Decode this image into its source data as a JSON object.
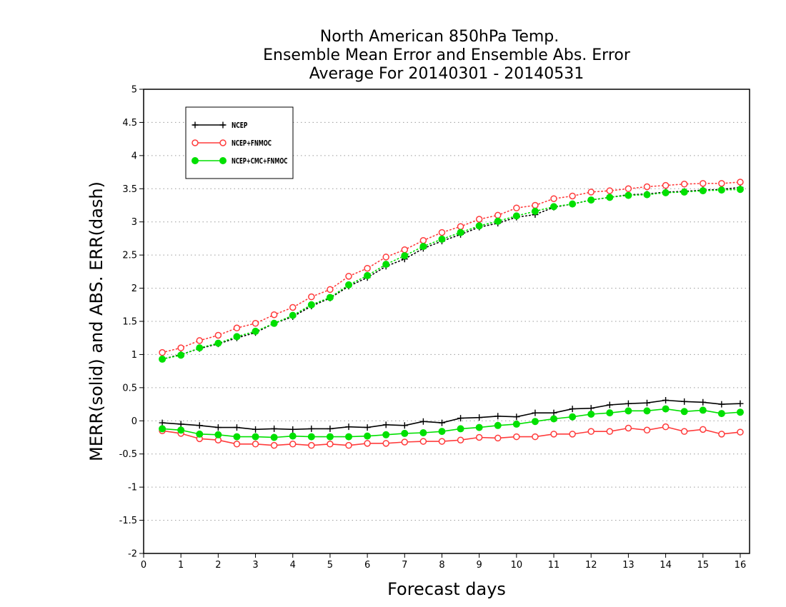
{
  "chart_data": {
    "type": "line",
    "title_lines": [
      "North American 850hPa Temp.",
      "Ensemble Mean Error and Ensemble Abs. Error",
      "Average For 20140301 - 20140531"
    ],
    "xlabel": "Forecast days",
    "ylabel": "MERR(solid) and ABS. ERR(dash)",
    "xlim": [
      0,
      16.25
    ],
    "ylim": [
      -2,
      5
    ],
    "x_ticks": [
      "0",
      "1",
      "2",
      "3",
      "4",
      "5",
      "6",
      "7",
      "8",
      "9",
      "10",
      "11",
      "12",
      "13",
      "14",
      "15",
      "16"
    ],
    "y_ticks": [
      "5",
      "4.5",
      "4",
      "3.5",
      "3",
      "2.5",
      "2",
      "1.5",
      "1",
      "0.5",
      "0",
      "-0.5",
      "-1",
      "-1.5",
      "-2"
    ],
    "grid": "horizontal-dotted",
    "legend_position": "top-left",
    "x": [
      0.5,
      1,
      1.5,
      2,
      2.5,
      3,
      3.5,
      4,
      4.5,
      5,
      5.5,
      6,
      6.5,
      7,
      7.5,
      8,
      8.5,
      9,
      9.5,
      10,
      10.5,
      11,
      11.5,
      12,
      12.5,
      13,
      13.5,
      14,
      14.5,
      15,
      15.5,
      16
    ],
    "series": [
      {
        "name": "NCEP",
        "color": "#000000",
        "marker": "plus",
        "merr": [
          -0.03,
          -0.05,
          -0.07,
          -0.1,
          -0.1,
          -0.13,
          -0.12,
          -0.13,
          -0.12,
          -0.12,
          -0.09,
          -0.1,
          -0.06,
          -0.07,
          -0.01,
          -0.03,
          0.04,
          0.05,
          0.07,
          0.06,
          0.12,
          0.12,
          0.18,
          0.19,
          0.24,
          0.26,
          0.27,
          0.31,
          0.29,
          0.28,
          0.25,
          0.26
        ],
        "abs_err": [
          0.93,
          1.0,
          1.09,
          1.16,
          1.25,
          1.33,
          1.47,
          1.57,
          1.73,
          1.85,
          2.03,
          2.16,
          2.33,
          2.44,
          2.6,
          2.71,
          2.81,
          2.92,
          2.98,
          3.07,
          3.11,
          3.22,
          3.27,
          3.33,
          3.37,
          3.41,
          3.42,
          3.45,
          3.46,
          3.48,
          3.49,
          3.52
        ]
      },
      {
        "name": "NCEP+FNMOC",
        "color": "#ff3b3b",
        "marker": "open-circle",
        "merr": [
          -0.15,
          -0.19,
          -0.27,
          -0.29,
          -0.35,
          -0.35,
          -0.37,
          -0.35,
          -0.37,
          -0.35,
          -0.37,
          -0.34,
          -0.34,
          -0.32,
          -0.31,
          -0.31,
          -0.29,
          -0.25,
          -0.26,
          -0.24,
          -0.24,
          -0.2,
          -0.2,
          -0.16,
          -0.16,
          -0.11,
          -0.14,
          -0.09,
          -0.16,
          -0.13,
          -0.2,
          -0.17
        ],
        "abs_err": [
          1.03,
          1.1,
          1.21,
          1.29,
          1.4,
          1.47,
          1.6,
          1.71,
          1.87,
          1.98,
          2.18,
          2.3,
          2.47,
          2.58,
          2.72,
          2.84,
          2.93,
          3.04,
          3.1,
          3.21,
          3.25,
          3.35,
          3.39,
          3.45,
          3.47,
          3.5,
          3.53,
          3.55,
          3.57,
          3.58,
          3.58,
          3.6
        ]
      },
      {
        "name": "NCEP+CMC+FNMOC",
        "color": "#00e000",
        "marker": "filled-circle",
        "merr": [
          -0.12,
          -0.14,
          -0.2,
          -0.21,
          -0.24,
          -0.24,
          -0.25,
          -0.23,
          -0.24,
          -0.24,
          -0.24,
          -0.23,
          -0.21,
          -0.19,
          -0.18,
          -0.16,
          -0.12,
          -0.1,
          -0.07,
          -0.05,
          -0.01,
          0.03,
          0.06,
          0.1,
          0.12,
          0.15,
          0.15,
          0.18,
          0.14,
          0.16,
          0.11,
          0.13
        ],
        "abs_err": [
          0.93,
          0.99,
          1.1,
          1.17,
          1.27,
          1.35,
          1.47,
          1.59,
          1.75,
          1.86,
          2.05,
          2.19,
          2.36,
          2.49,
          2.63,
          2.74,
          2.84,
          2.94,
          3.01,
          3.09,
          3.16,
          3.23,
          3.27,
          3.33,
          3.37,
          3.4,
          3.41,
          3.44,
          3.45,
          3.47,
          3.48,
          3.49
        ]
      }
    ]
  }
}
